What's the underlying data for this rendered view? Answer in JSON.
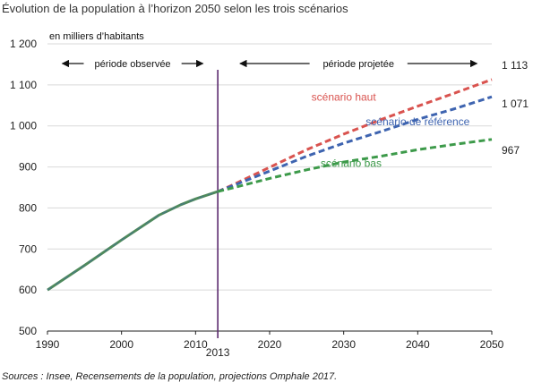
{
  "title": "Évolution de la population à l’horizon 2050 selon les trois scénarios",
  "source": "Sources : Insee, Recensements de la population, projections Omphale 2017.",
  "chart_data": {
    "type": "line",
    "ylabel": "en milliers d’habitants",
    "xlim": [
      1990,
      2050
    ],
    "ylim": [
      500,
      1200
    ],
    "x_ticks": [
      1990,
      2000,
      2010,
      2013,
      2020,
      2030,
      2040,
      2050
    ],
    "x_tick_labels": [
      "1990",
      "2000",
      "2010",
      "2013",
      "2020",
      "2030",
      "2040",
      "2050"
    ],
    "y_ticks": [
      500,
      600,
      700,
      800,
      900,
      1000,
      1100,
      1200
    ],
    "y_tick_labels": [
      "500",
      "600",
      "700",
      "800",
      "900",
      "1 000",
      "1 100",
      "1 200"
    ],
    "grid": "horizontal",
    "divider_x": 2013,
    "periods": [
      {
        "label": "période observée",
        "from": 1992,
        "to": 2011
      },
      {
        "label": "période projetée",
        "from": 2016,
        "to": 2048
      }
    ],
    "series": [
      {
        "name": "observé",
        "color": "#4f8a5b",
        "style": "solid",
        "x": [
          1990,
          1995,
          2000,
          2005,
          2008,
          2010,
          2013
        ],
        "y": [
          600,
          660,
          722,
          782,
          808,
          822,
          840
        ]
      },
      {
        "name": "scénario haut",
        "color": "#d9534f",
        "style": "dashed",
        "x": [
          2013,
          2015,
          2020,
          2025,
          2030,
          2035,
          2040,
          2045,
          2050
        ],
        "y": [
          840,
          856,
          899,
          942,
          980,
          1015,
          1048,
          1080,
          1113
        ]
      },
      {
        "name": "scénario de référence",
        "color": "#3e64b0",
        "style": "dashed",
        "x": [
          2013,
          2015,
          2020,
          2025,
          2030,
          2035,
          2040,
          2045,
          2050
        ],
        "y": [
          840,
          854,
          890,
          926,
          958,
          986,
          1016,
          1042,
          1071
        ]
      },
      {
        "name": "scénario bas",
        "color": "#3d9a4a",
        "style": "dashed",
        "x": [
          2013,
          2015,
          2020,
          2025,
          2030,
          2035,
          2040,
          2045,
          2050
        ],
        "y": [
          840,
          849,
          872,
          893,
          912,
          926,
          942,
          955,
          967
        ]
      }
    ],
    "series_labels": [
      {
        "text": "scénario haut",
        "color": "#d9534f",
        "x": 2030,
        "y": 1062
      },
      {
        "text": "scénario de référence",
        "color": "#3e64b0",
        "x": 2040,
        "y": 1002
      },
      {
        "text": "scénario bas",
        "color": "#3d9a4a",
        "x": 2031,
        "y": 900
      }
    ],
    "end_labels": [
      "1 113",
      "1 071",
      "967"
    ]
  }
}
